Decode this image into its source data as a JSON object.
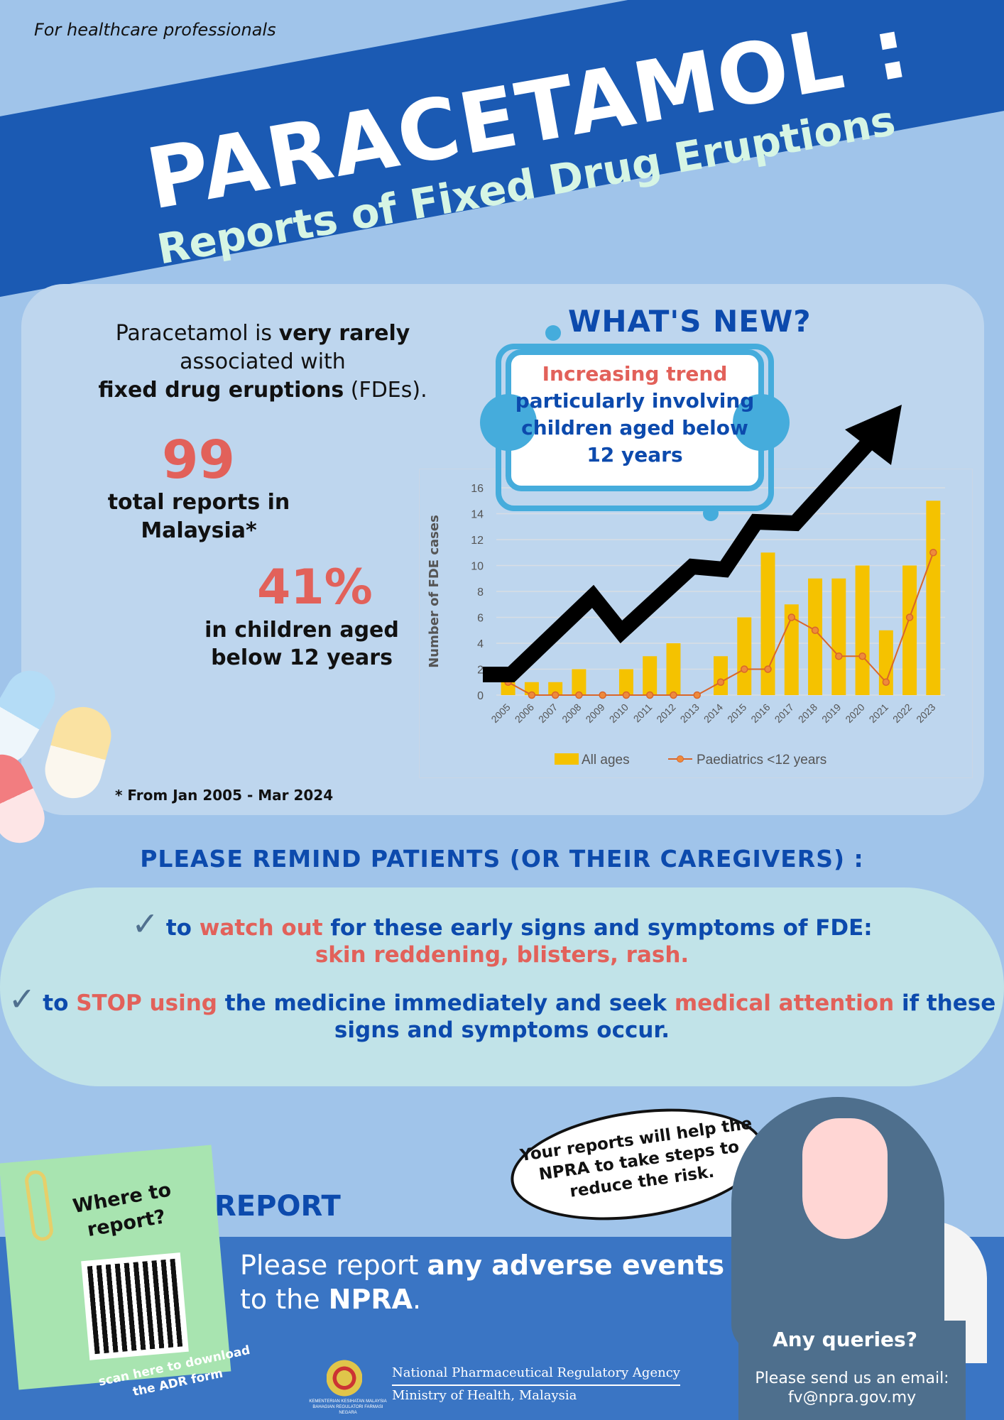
{
  "header": {
    "audience": "For healthcare professionals",
    "title": "PARACETAMOL :",
    "subtitle": "Reports of Fixed Drug Eruptions"
  },
  "intro": {
    "text_1": "Paracetamol is ",
    "text_bold_1": "very rarely",
    "text_2": " associated with ",
    "text_bold_2": "fixed drug eruptions",
    "text_3": " (FDEs)."
  },
  "stats": [
    {
      "value": "99",
      "label": "total reports in Malaysia*"
    },
    {
      "value": "41%",
      "label": "in children aged below 12 years"
    }
  ],
  "footnote": "* From Jan 2005 - Mar 2024",
  "whats_new": {
    "heading": "WHAT'S NEW?",
    "highlight": "Increasing trend",
    "text": "particularly involving children aged below 12 years"
  },
  "chart_data": {
    "type": "bar",
    "title": "",
    "xlabel": "",
    "ylabel": "Number of FDE cases",
    "ylim": [
      0,
      16
    ],
    "yticks": [
      0,
      2,
      4,
      6,
      8,
      10,
      12,
      14,
      16
    ],
    "grid": true,
    "legend_position": "bottom",
    "categories": [
      "2005",
      "2006",
      "2007",
      "2008",
      "2009",
      "2010",
      "2011",
      "2012",
      "2013",
      "2014",
      "2015",
      "2016",
      "2017",
      "2018",
      "2019",
      "2020",
      "2021",
      "2022",
      "2023"
    ],
    "series": [
      {
        "name": "All ages",
        "type": "bar",
        "color": "#f5c200",
        "values": [
          1,
          1,
          1,
          2,
          0,
          2,
          3,
          4,
          0,
          3,
          6,
          11,
          7,
          9,
          9,
          10,
          5,
          10,
          15
        ]
      },
      {
        "name": "Paediatrics <12 years",
        "type": "line",
        "color": "#d9662a",
        "values": [
          1,
          0,
          0,
          0,
          0,
          0,
          0,
          0,
          0,
          1,
          2,
          2,
          6,
          5,
          3,
          3,
          1,
          6,
          11
        ]
      }
    ],
    "annotation": "Black upward trend arrow overlay"
  },
  "remind": {
    "heading": "PLEASE REMIND PATIENTS (OR THEIR CAREGIVERS) :",
    "item1": {
      "a": "to ",
      "b_red": "watch out",
      "c": " for these early signs and symptoms of FDE:",
      "d_red": "skin reddening, blisters, rash."
    },
    "item2": {
      "a": "to ",
      "b_red": "STOP using",
      "c": " the medicine immediately and seek ",
      "d_red": "medical attention",
      "e": " if these signs and symptoms occur."
    }
  },
  "report": {
    "heading": "REPORT",
    "note_title": "Where to report?",
    "scan_text": "scan here to download the ADR form",
    "text_1": "Please report ",
    "text_bold_1": "any adverse events",
    "text_2": "to the ",
    "text_bold_2": "NPRA",
    "text_3": "."
  },
  "bubble": "Your reports will help the NPRA to take steps to reduce the risk.",
  "queries": {
    "title": "Any queries?",
    "text": "Please send us an email:",
    "email": "fv@npra.gov.my"
  },
  "agency": {
    "line1": "National Pharmaceutical Regulatory Agency",
    "line2": "Ministry of Health, Malaysia",
    "crest_caption": "KEMENTERIAN KESIHATAN MALAYSIA BAHAGIAN REGULATORI FARMASI NEGARA"
  },
  "colors": {
    "background": "#a0c4ea",
    "banner": "#1b5ab3",
    "panel": "#bed6ee",
    "accent_red": "#e2615a",
    "heading_blue": "#0c4aad",
    "bar_yellow": "#f5c200",
    "line_orange": "#d9662a",
    "callout_blue": "#45acdc",
    "remind_box": "#c1e3e8",
    "report_band": "#3a75c4"
  }
}
